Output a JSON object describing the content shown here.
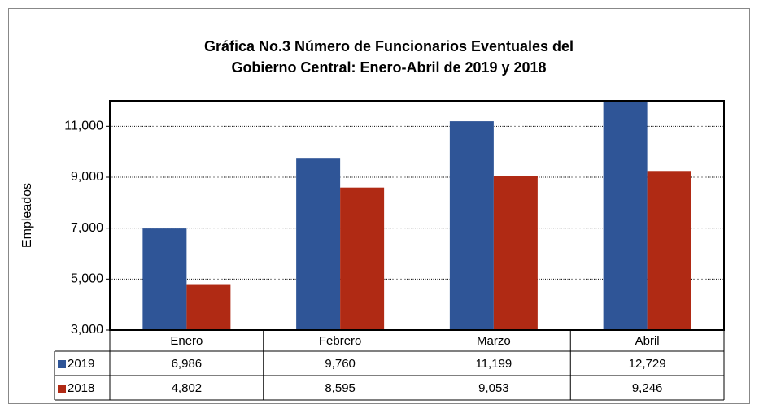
{
  "chart_data": {
    "type": "bar",
    "title": "Gráfica No.3 Número de Funcionarios Eventuales del",
    "subtitle": "Gobierno Central: Enero-Abril de 2019 y 2018",
    "y_label": "Empleados",
    "categories": [
      "Enero",
      "Febrero",
      "Marzo",
      "Abril"
    ],
    "series": [
      {
        "name": "2019",
        "color": "#2f5597",
        "values": [
          6986,
          9760,
          11199,
          12729
        ],
        "value_labels": [
          "6,986",
          "9,760",
          "11,199",
          "12,729"
        ]
      },
      {
        "name": "2018",
        "color": "#b02a14",
        "values": [
          4802,
          8595,
          9053,
          9246
        ],
        "value_labels": [
          "4,802",
          "8,595",
          "9,053",
          "9,246"
        ]
      }
    ],
    "ylim": [
      3000,
      12000
    ],
    "yticks": [
      {
        "value": 3000,
        "label": "3,000"
      },
      {
        "value": 5000,
        "label": "5,000"
      },
      {
        "value": 7000,
        "label": "7,000"
      },
      {
        "value": 9000,
        "label": "9,000"
      },
      {
        "value": 11000,
        "label": "11,000"
      }
    ],
    "grid": true
  }
}
